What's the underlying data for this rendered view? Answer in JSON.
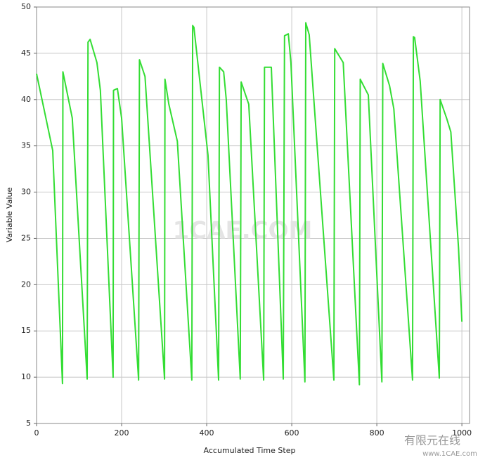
{
  "chart_data": {
    "type": "line",
    "x_label": "Accumulated Time Step",
    "y_label": "Variable Value",
    "x": [
      0,
      38,
      61,
      62,
      84,
      119,
      121,
      126,
      142,
      150,
      180,
      181,
      190,
      200,
      240,
      242,
      255,
      301,
      302,
      311,
      331,
      365,
      367,
      370,
      403,
      428,
      430,
      440,
      446,
      479,
      481,
      499,
      534,
      536,
      552,
      580,
      583,
      592,
      598,
      631,
      633,
      641,
      699,
      701,
      721,
      759,
      761,
      780,
      812,
      814,
      830,
      840,
      884,
      886,
      889,
      902,
      947,
      949,
      964,
      974,
      992,
      1000
    ],
    "series": [
      {
        "color": "#33dd33",
        "values": [
          42.8,
          34.5,
          9.3,
          43,
          38,
          9.8,
          46.2,
          46.5,
          44,
          41,
          10,
          41,
          41.2,
          38,
          9.7,
          44.3,
          42.5,
          9.8,
          42.2,
          39.5,
          35.5,
          9.7,
          48,
          47.8,
          34,
          9.7,
          43.5,
          43,
          40,
          9.8,
          41.9,
          39.5,
          9.7,
          43.5,
          43.5,
          9.8,
          46.9,
          47.1,
          44,
          9.5,
          48.3,
          47,
          9.7,
          45.5,
          44,
          9.2,
          42.2,
          40.5,
          9.5,
          43.9,
          41.5,
          39,
          9.7,
          46.8,
          46.7,
          42,
          9.9,
          40,
          38,
          36.5,
          24,
          16
        ]
      }
    ],
    "xlim": [
      0,
      1018
    ],
    "ylim": [
      5,
      50
    ],
    "xticks": [
      0,
      200,
      400,
      600,
      800,
      1000
    ],
    "yticks": [
      5,
      10,
      15,
      20,
      25,
      30,
      35,
      40,
      45,
      50
    ],
    "grid": true,
    "watermark": "1CAE.COM",
    "corner_text": "有限元在线",
    "corner_url": "www.1CAE.com"
  }
}
